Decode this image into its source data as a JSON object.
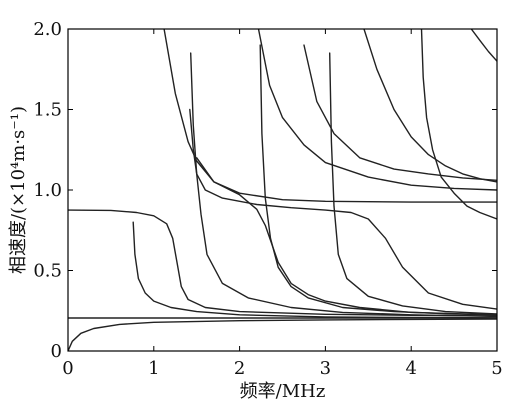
{
  "chart_data": {
    "type": "line",
    "title": "",
    "xlabel": "频率/MHz",
    "ylabel": "相速度/(×10⁴m·s⁻¹)",
    "xlim": [
      0,
      5
    ],
    "ylim": [
      0,
      2.0
    ],
    "xticks": [
      0,
      1,
      2,
      3,
      4,
      5
    ],
    "xtick_labels": [
      "0",
      "1",
      "2",
      "3",
      "4",
      "5"
    ],
    "yticks": [
      0,
      0.5,
      1.0,
      1.5,
      2.0
    ],
    "ytick_labels": [
      "0",
      "0.5",
      "1.0",
      "1.5",
      "2.0"
    ],
    "grid": false,
    "legend": "none",
    "line_color": "#222222",
    "series": [
      {
        "x": [
          0.0,
          0.05,
          0.15,
          0.3,
          0.6,
          1.0,
          2.0,
          3.0,
          4.0,
          5.0
        ],
        "y": [
          0.0,
          0.06,
          0.11,
          0.14,
          0.165,
          0.178,
          0.188,
          0.193,
          0.196,
          0.198
        ]
      },
      {
        "x": [
          0.0,
          5.0
        ],
        "y": [
          0.205,
          0.205
        ]
      },
      {
        "x": [
          0.0,
          0.5,
          0.8,
          1.0,
          1.15,
          1.22,
          1.27,
          1.32,
          1.4,
          1.6,
          2.0,
          3.0,
          4.0,
          5.0
        ],
        "y": [
          0.875,
          0.873,
          0.86,
          0.84,
          0.79,
          0.7,
          0.55,
          0.4,
          0.32,
          0.27,
          0.245,
          0.228,
          0.222,
          0.218
        ]
      },
      {
        "x": [
          0.76,
          0.78,
          0.82,
          0.9,
          1.0,
          1.2,
          1.5,
          2.0,
          3.0,
          4.0,
          5.0
        ],
        "y": [
          0.8,
          0.6,
          0.45,
          0.36,
          0.31,
          0.27,
          0.245,
          0.225,
          0.212,
          0.208,
          0.206
        ]
      },
      {
        "x": [
          1.12,
          1.25,
          1.4,
          1.5,
          1.7,
          2.0,
          2.5,
          3.0,
          4.0,
          5.0
        ],
        "y": [
          2.0,
          1.6,
          1.3,
          1.18,
          1.05,
          0.98,
          0.94,
          0.93,
          0.925,
          0.925
        ]
      },
      {
        "x": [
          1.43,
          1.46,
          1.5,
          1.55,
          1.62,
          1.8,
          2.1,
          2.6,
          3.2,
          4.0,
          5.0
        ],
        "y": [
          1.85,
          1.4,
          1.1,
          0.85,
          0.6,
          0.42,
          0.33,
          0.27,
          0.24,
          0.225,
          0.215
        ]
      },
      {
        "x": [
          1.42,
          1.46,
          1.5,
          1.6,
          1.8,
          2.2,
          2.6,
          3.0,
          3.3,
          3.5,
          3.7,
          3.9,
          4.2,
          4.6,
          5.0
        ],
        "y": [
          1.5,
          1.25,
          1.1,
          1.0,
          0.95,
          0.91,
          0.89,
          0.875,
          0.86,
          0.82,
          0.7,
          0.52,
          0.36,
          0.29,
          0.26
        ]
      },
      {
        "x": [
          1.5,
          1.7,
          2.0,
          2.2,
          2.3,
          2.45,
          2.6,
          2.8,
          3.0,
          3.4,
          4.0,
          5.0
        ],
        "y": [
          1.2,
          1.05,
          0.97,
          0.88,
          0.78,
          0.55,
          0.42,
          0.35,
          0.31,
          0.27,
          0.24,
          0.225
        ]
      },
      {
        "x": [
          2.24,
          2.26,
          2.3,
          2.36,
          2.45,
          2.6,
          2.8,
          3.2,
          3.8,
          4.5,
          5.0
        ],
        "y": [
          1.9,
          1.35,
          0.95,
          0.7,
          0.52,
          0.4,
          0.33,
          0.27,
          0.245,
          0.23,
          0.225
        ]
      },
      {
        "x": [
          2.22,
          2.35,
          2.5,
          2.75,
          3.0,
          3.5,
          4.0,
          4.5,
          5.0
        ],
        "y": [
          2.0,
          1.65,
          1.45,
          1.28,
          1.17,
          1.08,
          1.03,
          1.01,
          1.0
        ]
      },
      {
        "x": [
          2.75,
          2.9,
          3.1,
          3.4,
          3.8,
          4.2,
          4.6,
          5.0
        ],
        "y": [
          1.9,
          1.55,
          1.35,
          1.2,
          1.13,
          1.1,
          1.075,
          1.06
        ]
      },
      {
        "x": [
          3.05,
          3.07,
          3.1,
          3.15,
          3.25,
          3.5,
          3.9,
          4.4,
          5.0
        ],
        "y": [
          1.85,
          1.3,
          0.9,
          0.6,
          0.45,
          0.34,
          0.28,
          0.245,
          0.23
        ]
      },
      {
        "x": [
          3.45,
          3.6,
          3.8,
          4.0,
          4.2,
          4.4,
          4.6,
          4.8,
          5.0
        ],
        "y": [
          2.0,
          1.75,
          1.5,
          1.33,
          1.22,
          1.15,
          1.1,
          1.07,
          1.05
        ]
      },
      {
        "x": [
          4.12,
          4.14,
          4.18,
          4.25,
          4.35,
          4.5,
          4.65,
          4.8,
          5.0
        ],
        "y": [
          2.0,
          1.7,
          1.45,
          1.25,
          1.08,
          0.98,
          0.9,
          0.86,
          0.82
        ]
      },
      {
        "x": [
          4.7,
          4.8,
          4.9,
          5.0
        ],
        "y": [
          2.0,
          1.93,
          1.86,
          1.8
        ]
      }
    ]
  }
}
